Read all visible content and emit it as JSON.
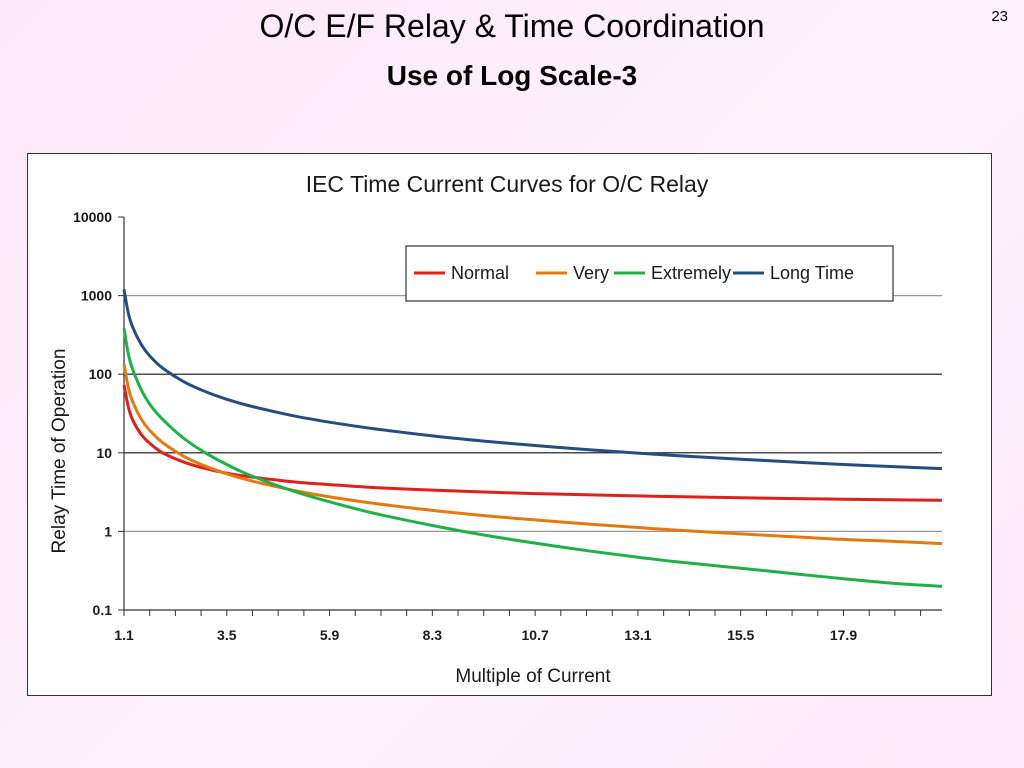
{
  "slide": {
    "title": "O/C E/F Relay & Time Coordination",
    "subtitle": "Use of Log Scale-3",
    "page_number": "23"
  },
  "chart_data": {
    "type": "line",
    "title": "IEC Time Current Curves for O/C Relay",
    "xlabel": "Multiple of Current",
    "ylabel": "Relay Time of Operation",
    "y_scale": "log",
    "ylim": [
      0.1,
      10000
    ],
    "y_ticks": [
      "0.1",
      "1",
      "10",
      "100",
      "1000",
      "10000"
    ],
    "xlim": [
      1.1,
      20.2
    ],
    "x_ticks": [
      "1.1",
      "3.5",
      "5.9",
      "8.3",
      "10.7",
      "13.1",
      "15.5",
      "17.9"
    ],
    "grid": "horizontal major lines",
    "legend_position": "top-right",
    "x": [
      1.1,
      1.2,
      1.3,
      1.5,
      1.7,
      2.0,
      2.5,
      3.0,
      3.5,
      4.0,
      5.0,
      5.9,
      7.0,
      8.3,
      9.5,
      10.7,
      12.0,
      13.1,
      14.0,
      15.5,
      17.0,
      17.9,
      19.0,
      20.2
    ],
    "series": [
      {
        "name": "Normal",
        "color": "#e0201a",
        "values": [
          73,
          38.5,
          26.3,
          17.2,
          13.2,
          10.0,
          7.6,
          6.3,
          5.5,
          5.0,
          4.3,
          3.94,
          3.6,
          3.35,
          3.17,
          3.03,
          2.91,
          2.83,
          2.77,
          2.68,
          2.61,
          2.57,
          2.53,
          2.49
        ]
      },
      {
        "name": "Very",
        "color": "#e5780e",
        "values": [
          135,
          67.5,
          45.0,
          27.0,
          19.3,
          13.5,
          9.0,
          6.75,
          5.4,
          4.5,
          3.38,
          2.75,
          2.25,
          1.85,
          1.59,
          1.4,
          1.23,
          1.12,
          1.04,
          0.93,
          0.84,
          0.79,
          0.75,
          0.7
        ]
      },
      {
        "name": "Extremely",
        "color": "#20b048",
        "values": [
          381,
          182,
          116,
          64,
          41.7,
          26.7,
          15.2,
          10.0,
          7.1,
          5.3,
          3.33,
          2.38,
          1.67,
          1.19,
          0.9,
          0.71,
          0.56,
          0.47,
          0.41,
          0.34,
          0.28,
          0.25,
          0.22,
          0.2
        ]
      },
      {
        "name": "Long Time",
        "color": "#244d80",
        "values": [
          1200,
          600,
          400,
          240,
          171,
          120,
          80,
          60,
          48,
          40,
          30,
          24.5,
          20,
          16.4,
          14.1,
          12.4,
          10.9,
          9.9,
          9.2,
          8.3,
          7.5,
          7.1,
          6.7,
          6.3
        ]
      }
    ]
  }
}
